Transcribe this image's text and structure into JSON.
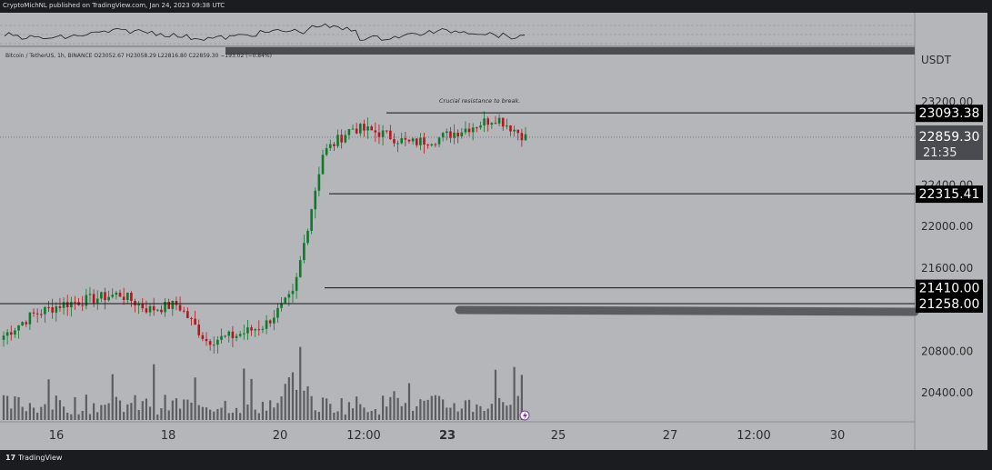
{
  "header": {
    "published_line": "CryptoMichNL published on TradingView.com, Jan 24, 2023 09:38 UTC"
  },
  "legend": {
    "symbol_line": "Bitcoin / TetherUS, 1h, BINANCE  O23052.67  H23058.29  L22816.80  C22859.30  −193.02 (−0.84%)"
  },
  "annotation": {
    "text": "Crucial resistance to break."
  },
  "price_axis": {
    "currency": "USDT",
    "ticks": [
      "23200.00",
      "22400.00",
      "22000.00",
      "21600.00",
      "20800.00",
      "20400.00"
    ],
    "tick_values": [
      23200,
      22400,
      22000,
      21600,
      20800,
      20400
    ]
  },
  "time_axis": {
    "labels": [
      "16",
      "18",
      "20",
      "12:00",
      "23",
      "25",
      "27",
      "12:00",
      "30"
    ],
    "bold": [
      false,
      false,
      false,
      false,
      true,
      false,
      false,
      false,
      false
    ]
  },
  "price_labels": [
    {
      "label": "23093.38",
      "value": 23093.38,
      "style": "line"
    },
    {
      "label": "22859.30",
      "value": 22859.3,
      "style": "current",
      "countdown": "21:35"
    },
    {
      "label": "22315.41",
      "value": 22315.41,
      "style": "line"
    },
    {
      "label": "21410.00",
      "value": 21410.0,
      "style": "line"
    },
    {
      "label": "21258.00",
      "value": 21258.0,
      "style": "line"
    }
  ],
  "footer": {
    "brand": "TradingView"
  },
  "colors": {
    "background": "#b5b6ba",
    "up_candle": "#0d7a2a",
    "down_candle": "#b3161d",
    "line": "#111111",
    "label_bg": "#000000",
    "volume_bar": "#3f3f42"
  },
  "chart_data": {
    "type": "candlestick",
    "title": "Bitcoin / TetherUS, 1h, BINANCE",
    "ylim": [
      20100,
      23550
    ],
    "ohlc_last": {
      "open": 23052.67,
      "high": 23058.29,
      "low": 22816.8,
      "close": 22859.3,
      "change": -193.02,
      "change_pct": -0.84
    },
    "horizontal_levels": [
      23093.38,
      22315.41,
      21410.0,
      21258.0
    ],
    "close_path": {
      "days": [
        "16",
        "18",
        "20",
        "12:00",
        "23"
      ],
      "anchor_closes": [
        20950,
        21150,
        21250,
        21300,
        21350,
        21200,
        21250,
        20900,
        20950,
        21050,
        21350,
        22700,
        22950,
        22900,
        22800,
        22850,
        22950,
        23050,
        22860
      ]
    }
  }
}
